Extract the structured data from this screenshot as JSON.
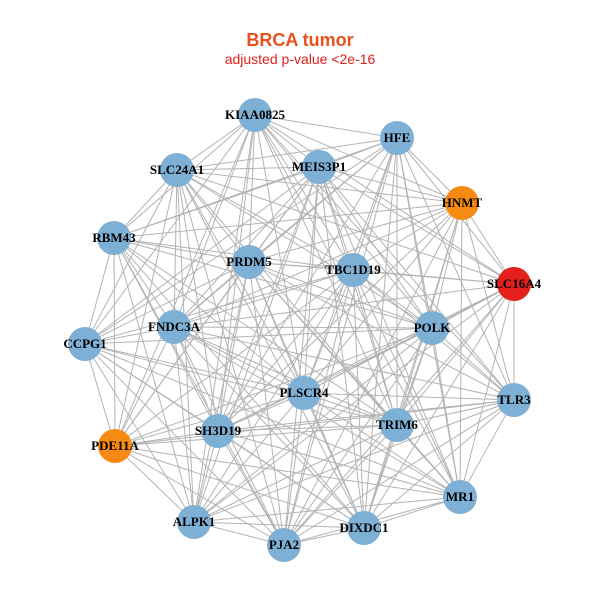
{
  "title": "BRCA tumor",
  "subtitle": "adjusted p-value <2e-16",
  "colors": {
    "title": "#e8501c",
    "subtitle": "#e0201c",
    "edge": "#b3b3b3",
    "node_default": "#7eb0d6",
    "node_highlight_orange": "#f78a12",
    "node_highlight_red": "#e3201c"
  },
  "nodes": [
    {
      "id": "KIAA0825",
      "label": "KIAA0825",
      "group": "default"
    },
    {
      "id": "HFE",
      "label": "HFE",
      "group": "default"
    },
    {
      "id": "SLC24A1",
      "label": "SLC24A1",
      "group": "default"
    },
    {
      "id": "MEIS3P1",
      "label": "MEIS3P1",
      "group": "default"
    },
    {
      "id": "HNMT",
      "label": "HNMT",
      "group": "orange"
    },
    {
      "id": "RBM43",
      "label": "RBM43",
      "group": "default"
    },
    {
      "id": "PRDM5",
      "label": "PRDM5",
      "group": "default"
    },
    {
      "id": "TBC1D19",
      "label": "TBC1D19",
      "group": "default"
    },
    {
      "id": "SLC16A4",
      "label": "SLC16A4",
      "group": "red"
    },
    {
      "id": "FNDC3A",
      "label": "FNDC3A",
      "group": "default"
    },
    {
      "id": "CCPG1",
      "label": "CCPG1",
      "group": "default"
    },
    {
      "id": "POLK",
      "label": "POLK",
      "group": "default"
    },
    {
      "id": "PLSCR4",
      "label": "PLSCR4",
      "group": "default"
    },
    {
      "id": "TLR3",
      "label": "TLR3",
      "group": "default"
    },
    {
      "id": "SH3D19",
      "label": "SH3D19",
      "group": "default"
    },
    {
      "id": "TRIM6",
      "label": "TRIM6",
      "group": "default"
    },
    {
      "id": "PDE11A",
      "label": "PDE11A",
      "group": "orange"
    },
    {
      "id": "MR1",
      "label": "MR1",
      "group": "default"
    },
    {
      "id": "ALPK1",
      "label": "ALPK1",
      "group": "default"
    },
    {
      "id": "DIXDC1",
      "label": "DIXDC1",
      "group": "default"
    },
    {
      "id": "PJA2",
      "label": "PJA2",
      "group": "default"
    }
  ]
}
